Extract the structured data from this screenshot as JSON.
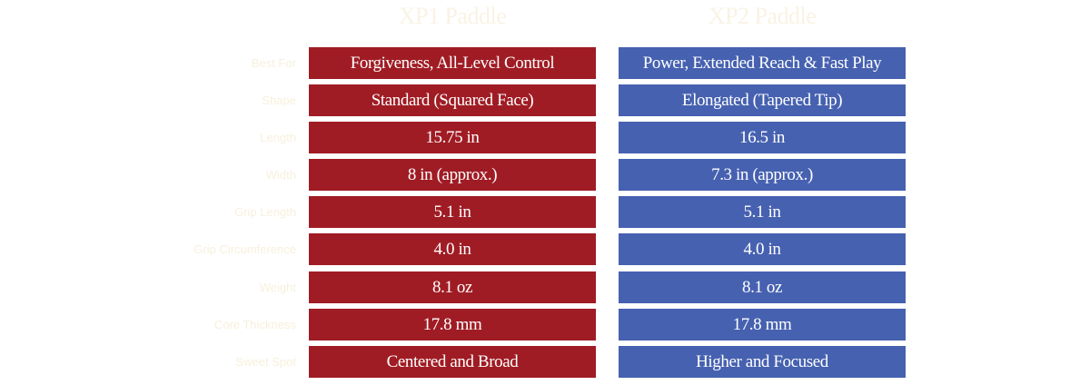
{
  "columns": {
    "xp1": "XP1 Paddle",
    "xp2": "XP2 Paddle"
  },
  "rows": [
    {
      "label": "Best For",
      "xp1": "Forgiveness, All-Level Control",
      "xp2": "Power, Extended Reach & Fast Play"
    },
    {
      "label": "Shape",
      "xp1": "Standard (Squared Face)",
      "xp2": "Elongated (Tapered Tip)"
    },
    {
      "label": "Length",
      "xp1": "15.75 in",
      "xp2": "16.5 in"
    },
    {
      "label": "Width",
      "xp1": "8 in (approx.)",
      "xp2": "7.3 in (approx.)"
    },
    {
      "label": "Grip Length",
      "xp1": "5.1 in",
      "xp2": "5.1 in"
    },
    {
      "label": "Grip Circumference",
      "xp1": "4.0 in",
      "xp2": "4.0 in"
    },
    {
      "label": "Weight",
      "xp1": "8.1 oz",
      "xp2": "8.1 oz"
    },
    {
      "label": "Core Thickness",
      "xp1": "17.8 mm",
      "xp2": "17.8 mm"
    },
    {
      "label": "Sweet Spot",
      "xp1": "Centered and Broad",
      "xp2": "Higher and Focused"
    }
  ],
  "colors": {
    "xp1_background": "#a01c24",
    "xp2_background": "#4661b0",
    "header_text": "#f9f3e4",
    "label_text": "#f7f0dc",
    "cell_text": "#ffffff"
  }
}
